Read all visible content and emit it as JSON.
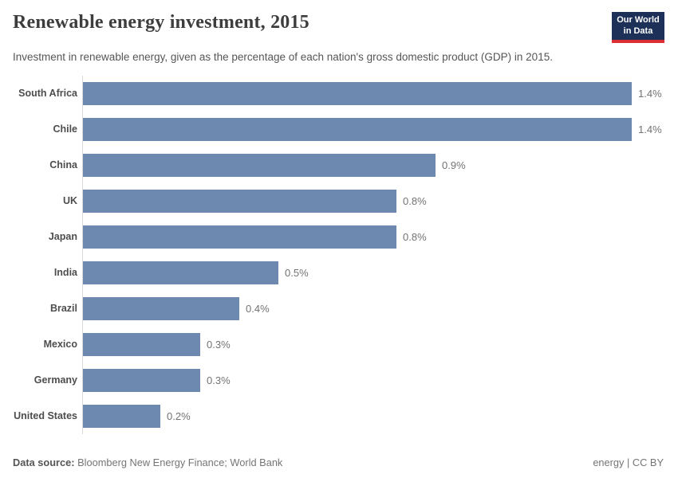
{
  "header": {
    "title": "Renewable energy investment, 2015",
    "subtitle": "Investment in renewable energy, given as the percentage of each nation's gross domestic product (GDP) in 2015.",
    "logo": {
      "line1": "Our World",
      "line2": "in Data"
    }
  },
  "chart_data": {
    "type": "bar",
    "orientation": "horizontal",
    "title": "Renewable energy investment, 2015",
    "categories": [
      "South Africa",
      "Chile",
      "China",
      "UK",
      "Japan",
      "India",
      "Brazil",
      "Mexico",
      "Germany",
      "United States"
    ],
    "values": [
      1.4,
      1.4,
      0.9,
      0.8,
      0.8,
      0.5,
      0.4,
      0.3,
      0.3,
      0.2
    ],
    "value_labels": [
      "1.4%",
      "1.4%",
      "0.9%",
      "0.8%",
      "0.8%",
      "0.5%",
      "0.4%",
      "0.3%",
      "0.3%",
      "0.2%"
    ],
    "unit": "%",
    "xlim": [
      0,
      1.4
    ],
    "grid": false,
    "legend": "none",
    "xlabel": "",
    "ylabel": ""
  },
  "footer": {
    "datasource_label": "Data source:",
    "datasource_value": " Bloomberg New Energy Finance; World Bank",
    "right_text": "energy | CC BY"
  },
  "colors": {
    "bar": "#6e89b0",
    "axis_line": "#d9d9d9",
    "logo_bg": "#1d3158",
    "logo_accent": "#dc2e33",
    "title_text": "#3d3d3d",
    "subtitle_text": "#565656"
  }
}
